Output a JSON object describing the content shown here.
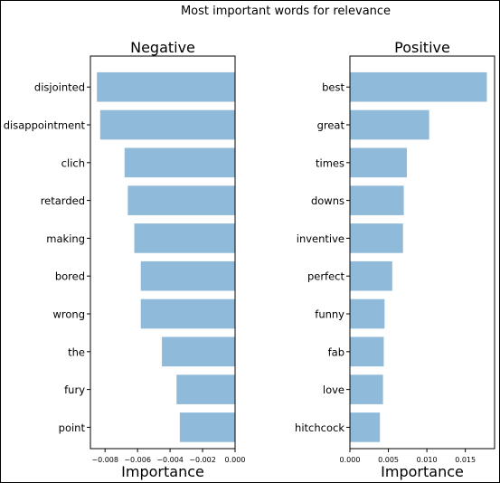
{
  "suptitle": "Most important words for relevance",
  "colors": {
    "bar": "#8fbada",
    "axis": "#000000",
    "background": "#ffffff"
  },
  "chart_data": [
    {
      "type": "bar",
      "orientation": "horizontal",
      "title": "Negative",
      "xlabel": "Importance",
      "ylabel": "",
      "categories": [
        "disjointed",
        "disappointment",
        "clich",
        "retarded",
        "making",
        "bored",
        "wrong",
        "the",
        "fury",
        "point"
      ],
      "values": [
        -0.0085,
        -0.0083,
        -0.0068,
        -0.0066,
        -0.0062,
        -0.0058,
        -0.0058,
        -0.0045,
        -0.0036,
        -0.0034
      ],
      "xlim": [
        -0.0089,
        0.0
      ],
      "xticks": [
        -0.008,
        -0.006,
        -0.004,
        -0.002,
        0.0
      ],
      "xtick_labels": [
        "−0.008",
        "−0.006",
        "−0.004",
        "−0.002",
        "0.000"
      ],
      "grid": false
    },
    {
      "type": "bar",
      "orientation": "horizontal",
      "title": "Positive",
      "xlabel": "Importance",
      "ylabel": "",
      "categories": [
        "best",
        "great",
        "times",
        "downs",
        "inventive",
        "perfect",
        "funny",
        "fab",
        "love",
        "hitchcock"
      ],
      "values": [
        0.0178,
        0.0103,
        0.0074,
        0.007,
        0.0069,
        0.0055,
        0.0045,
        0.0044,
        0.0043,
        0.0039
      ],
      "xlim": [
        0.0,
        0.0188
      ],
      "xticks": [
        0.0,
        0.005,
        0.01,
        0.015
      ],
      "xtick_labels": [
        "0.000",
        "0.005",
        "0.010",
        "0.015"
      ],
      "grid": false
    }
  ]
}
